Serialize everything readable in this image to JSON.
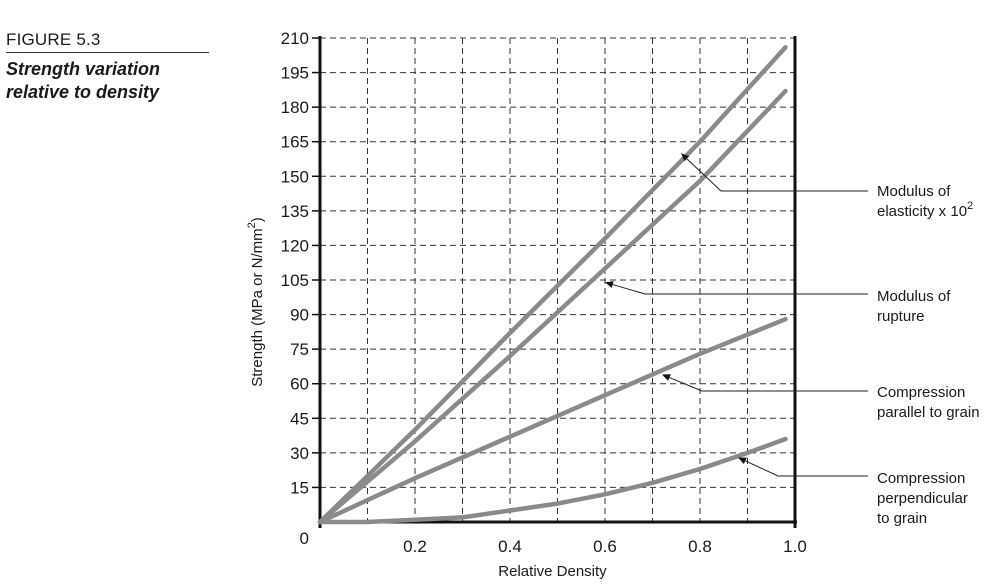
{
  "figure": {
    "label": "FIGURE 5.3",
    "caption": "Strength variation relative to density"
  },
  "chart_data": {
    "type": "line",
    "title": "Strength variation relative to density",
    "xlabel": "Relative Density",
    "ylabel": "Strength (MPa or N/mm2)",
    "ylabel_superscript": "2",
    "xlim": [
      0,
      1.0
    ],
    "ylim": [
      0,
      210
    ],
    "x_ticks": [
      0.2,
      0.4,
      0.6,
      0.8,
      1.0
    ],
    "x_tick_labels": [
      "0.2",
      "0.4",
      "0.6",
      "0.8",
      "1.0"
    ],
    "y_ticks": [
      0,
      15,
      30,
      45,
      60,
      75,
      90,
      105,
      120,
      135,
      150,
      165,
      180,
      195,
      210
    ],
    "y_tick_labels": [
      "0",
      "15",
      "30",
      "45",
      "60",
      "75",
      "90",
      "105",
      "120",
      "135",
      "150",
      "165",
      "180",
      "195",
      "210"
    ],
    "grid": true,
    "grid_minor_x_step": 0.1,
    "line_color": "#8a8a8a",
    "series": [
      {
        "name": "Modulus of elasticity x 10^2",
        "x": [
          0,
          0.2,
          0.4,
          0.6,
          0.8,
          0.98
        ],
        "y": [
          0,
          40,
          82,
          123,
          165,
          206
        ]
      },
      {
        "name": "Modulus of rupture",
        "x": [
          0,
          0.2,
          0.4,
          0.6,
          0.8,
          0.98
        ],
        "y": [
          0,
          35,
          72,
          110,
          148,
          187
        ]
      },
      {
        "name": "Compression parallel to grain",
        "x": [
          0,
          0.2,
          0.4,
          0.6,
          0.8,
          0.98
        ],
        "y": [
          0,
          19,
          37,
          55,
          73,
          88
        ]
      },
      {
        "name": "Compression perpendicular to grain",
        "x": [
          0,
          0.1,
          0.2,
          0.3,
          0.4,
          0.5,
          0.6,
          0.7,
          0.8,
          0.9,
          0.98
        ],
        "y": [
          0,
          0,
          1,
          2,
          5,
          8,
          12,
          17,
          23,
          30,
          36
        ]
      }
    ],
    "annotations": [
      {
        "lines": [
          "Modulus of",
          "elasticity x 10"
        ],
        "superscript": "2",
        "point": [
          0.76,
          160
        ]
      },
      {
        "lines": [
          "Modulus of",
          "rupture"
        ],
        "point": [
          0.6,
          104
        ]
      },
      {
        "lines": [
          "Compression",
          "parallel to grain"
        ],
        "point": [
          0.72,
          64
        ]
      },
      {
        "lines": [
          "Compression",
          "perpendicular",
          "to grain"
        ],
        "point": [
          0.88,
          28
        ]
      }
    ]
  }
}
